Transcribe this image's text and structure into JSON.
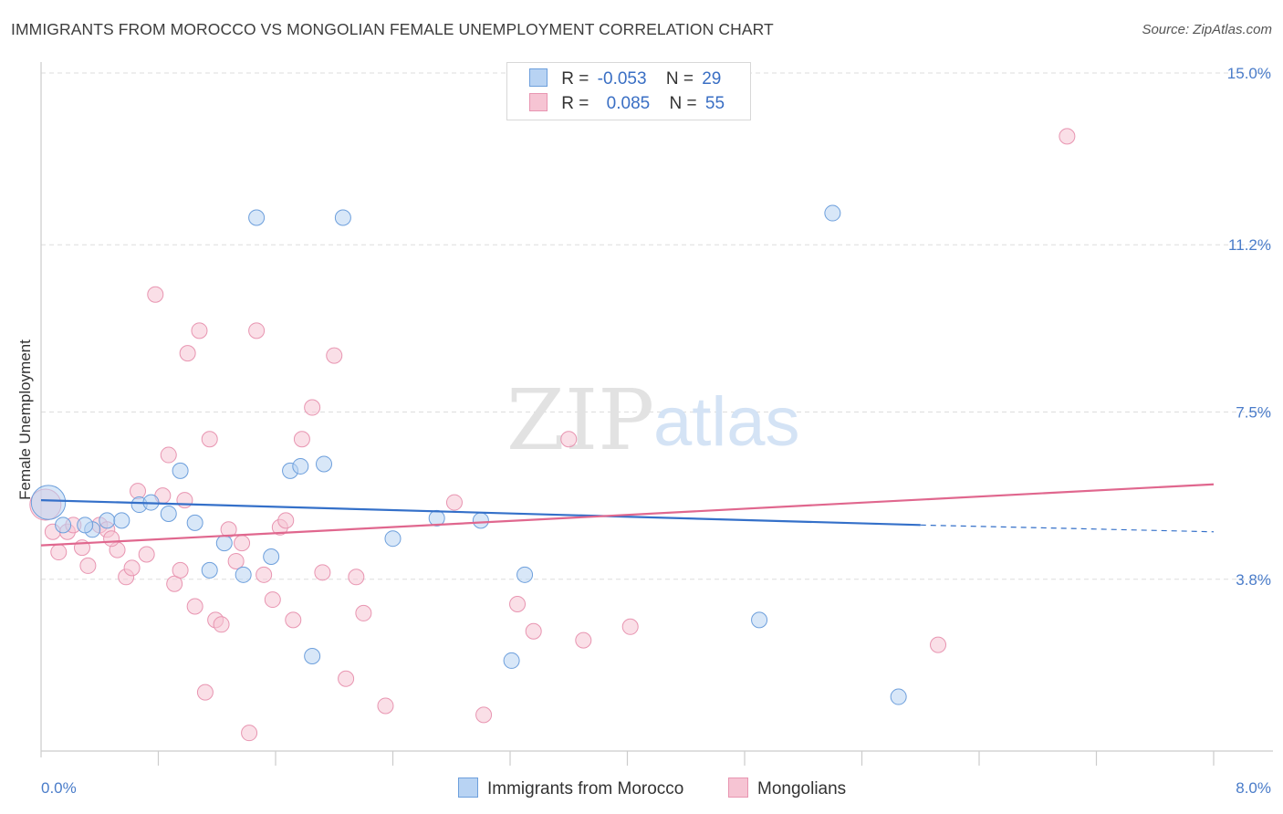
{
  "header": {
    "title": "IMMIGRANTS FROM MOROCCO VS MONGOLIAN FEMALE UNEMPLOYMENT CORRELATION CHART",
    "source": "Source: ZipAtlas.com"
  },
  "watermark": {
    "zip": "ZIP",
    "atlas": "atlas"
  },
  "legend_top": {
    "rows": [
      {
        "r_label": "R =",
        "r_value": "-0.053",
        "n_label": "N =",
        "n_value": "29"
      },
      {
        "r_label": "R =",
        "r_value": "0.085",
        "n_label": "N =",
        "n_value": "55"
      }
    ]
  },
  "legend_bottom": {
    "series1": "Immigrants from Morocco",
    "series2": "Mongolians"
  },
  "colors": {
    "blue_fill": "#b8d3f3",
    "blue_stroke": "#6d9fdc",
    "blue_line": "#3470c9",
    "pink_fill": "#f6c4d3",
    "pink_stroke": "#e895b1",
    "pink_line": "#e0678e",
    "tick_text": "#4a7cc9",
    "grid": "#dddddd"
  },
  "chart_data": {
    "type": "scatter",
    "title": "IMMIGRANTS FROM MOROCCO VS MONGOLIAN FEMALE UNEMPLOYMENT CORRELATION CHART",
    "xlabel": "",
    "ylabel": "Female Unemployment",
    "xlim": [
      0.0,
      8.0
    ],
    "ylim": [
      0.0,
      15.0
    ],
    "x_tick_labels": [
      "0.0%",
      "8.0%"
    ],
    "y_ticks": [
      3.8,
      7.5,
      11.2,
      15.0
    ],
    "y_tick_labels": [
      "3.8%",
      "7.5%",
      "11.2%",
      "15.0%"
    ],
    "grid": "horizontal dashed",
    "legend": "top-center",
    "series": [
      {
        "name": "Immigrants from Morocco",
        "r": -0.053,
        "n": 29,
        "trend": {
          "x0": 0.0,
          "y0": 5.55,
          "x1": 6.0,
          "y1": 5.0,
          "dashed_to": 8.0,
          "dashed_y": 4.85
        },
        "points": [
          [
            0.05,
            5.5,
            2.2
          ],
          [
            0.15,
            5.0,
            1
          ],
          [
            0.35,
            4.9,
            1
          ],
          [
            0.45,
            5.1,
            1
          ],
          [
            0.55,
            5.1,
            1
          ],
          [
            0.67,
            5.45,
            1
          ],
          [
            0.75,
            5.5,
            1
          ],
          [
            0.87,
            5.25,
            1
          ],
          [
            0.95,
            6.2,
            1
          ],
          [
            1.05,
            5.05,
            1
          ],
          [
            1.15,
            4.0,
            1
          ],
          [
            1.25,
            4.6,
            1
          ],
          [
            1.38,
            3.9,
            1
          ],
          [
            1.47,
            11.8,
            1
          ],
          [
            1.57,
            4.3,
            1
          ],
          [
            1.7,
            6.2,
            1
          ],
          [
            1.77,
            6.3,
            1
          ],
          [
            1.85,
            2.1,
            1
          ],
          [
            1.93,
            6.35,
            1
          ],
          [
            2.06,
            11.8,
            1
          ],
          [
            2.4,
            4.7,
            1
          ],
          [
            2.7,
            5.15,
            1
          ],
          [
            3.0,
            5.1,
            1
          ],
          [
            3.21,
            2.0,
            1
          ],
          [
            3.3,
            3.9,
            1
          ],
          [
            4.9,
            2.9,
            1
          ],
          [
            5.4,
            11.9,
            1
          ],
          [
            5.85,
            1.2,
            1
          ],
          [
            0.3,
            5.0,
            1
          ]
        ]
      },
      {
        "name": "Mongolians",
        "r": 0.085,
        "n": 55,
        "trend": {
          "x0": 0.0,
          "y0": 4.55,
          "x1": 8.0,
          "y1": 5.9
        },
        "points": [
          [
            0.03,
            5.45,
            2.0
          ],
          [
            0.08,
            4.85,
            1
          ],
          [
            0.12,
            4.4,
            1
          ],
          [
            0.18,
            4.85,
            1
          ],
          [
            0.22,
            5.0,
            1
          ],
          [
            0.28,
            4.5,
            1
          ],
          [
            0.32,
            4.1,
            1
          ],
          [
            0.4,
            5.0,
            1
          ],
          [
            0.45,
            4.9,
            1
          ],
          [
            0.52,
            4.45,
            1
          ],
          [
            0.58,
            3.85,
            1
          ],
          [
            0.62,
            4.05,
            1
          ],
          [
            0.66,
            5.75,
            1
          ],
          [
            0.72,
            4.35,
            1
          ],
          [
            0.78,
            10.1,
            1
          ],
          [
            0.83,
            5.65,
            1
          ],
          [
            0.87,
            6.55,
            1
          ],
          [
            0.91,
            3.7,
            1
          ],
          [
            0.95,
            4.0,
            1
          ],
          [
            1.0,
            8.8,
            1
          ],
          [
            1.05,
            3.2,
            1
          ],
          [
            1.08,
            9.3,
            1
          ],
          [
            1.12,
            1.3,
            1
          ],
          [
            1.15,
            6.9,
            1
          ],
          [
            1.19,
            2.9,
            1
          ],
          [
            1.23,
            2.8,
            1
          ],
          [
            1.28,
            4.9,
            1
          ],
          [
            1.33,
            4.2,
            1
          ],
          [
            1.37,
            4.6,
            1
          ],
          [
            1.42,
            0.4,
            1
          ],
          [
            1.47,
            9.3,
            1
          ],
          [
            1.52,
            3.9,
            1
          ],
          [
            1.58,
            3.35,
            1
          ],
          [
            1.63,
            4.95,
            1
          ],
          [
            1.67,
            5.1,
            1
          ],
          [
            1.72,
            2.9,
            1
          ],
          [
            1.78,
            6.9,
            1
          ],
          [
            1.85,
            7.6,
            1
          ],
          [
            1.92,
            3.95,
            1
          ],
          [
            2.0,
            8.75,
            1
          ],
          [
            2.08,
            1.6,
            1
          ],
          [
            2.15,
            3.85,
            1
          ],
          [
            2.2,
            3.05,
            1
          ],
          [
            2.35,
            1.0,
            1
          ],
          [
            2.82,
            5.5,
            1
          ],
          [
            3.02,
            0.8,
            1
          ],
          [
            3.25,
            3.25,
            1
          ],
          [
            3.36,
            2.65,
            1
          ],
          [
            3.6,
            6.9,
            1
          ],
          [
            3.7,
            2.45,
            1
          ],
          [
            4.02,
            2.75,
            1
          ],
          [
            6.12,
            2.35,
            1
          ],
          [
            7.0,
            13.6,
            1
          ],
          [
            0.48,
            4.7,
            1
          ],
          [
            0.98,
            5.55,
            1
          ]
        ]
      }
    ]
  }
}
